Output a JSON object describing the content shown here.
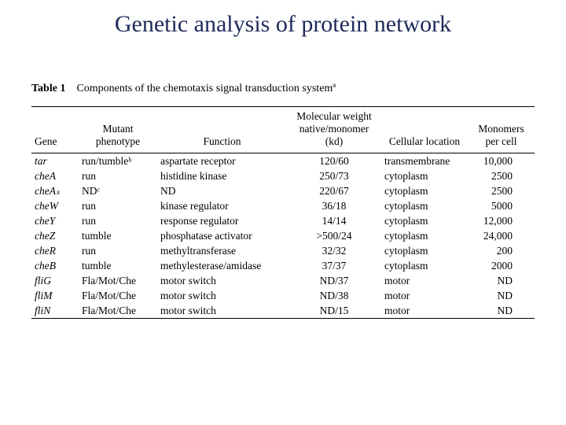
{
  "title": "Genetic analysis of protein network",
  "table": {
    "number": "Table 1",
    "caption": "Components of the chemotaxis signal transduction systemª",
    "headers": {
      "gene": "Gene",
      "phenotype": "Mutant phenotype",
      "function": "Function",
      "mw": "Molecular weight native/monomer (kd)",
      "location": "Cellular location",
      "monomers": "Monomers per cell"
    },
    "rows": [
      {
        "gene": "tar",
        "phen": "run/tumbleᵇ",
        "func": "aspartate receptor",
        "mw": "120/60",
        "loc": "transmembrane",
        "mon": "10,000"
      },
      {
        "gene": "cheA",
        "phen": "run",
        "func": "histidine kinase",
        "mw": "250/73",
        "loc": "cytoplasm",
        "mon": "2500"
      },
      {
        "gene": "cheAₛ",
        "phen": "NDᶜ",
        "func": "ND",
        "mw": "220/67",
        "loc": "cytoplasm",
        "mon": "2500"
      },
      {
        "gene": "cheW",
        "phen": "run",
        "func": "kinase regulator",
        "mw": "36/18",
        "loc": "cytoplasm",
        "mon": "5000"
      },
      {
        "gene": "cheY",
        "phen": "run",
        "func": "response regulator",
        "mw": "14/14",
        "loc": "cytoplasm",
        "mon": "12,000"
      },
      {
        "gene": "cheZ",
        "phen": "tumble",
        "func": "phosphatase activator",
        "mw": ">500/24",
        "loc": "cytoplasm",
        "mon": "24,000"
      },
      {
        "gene": "cheR",
        "phen": "run",
        "func": "methyltransferase",
        "mw": "32/32",
        "loc": "cytoplasm",
        "mon": "200"
      },
      {
        "gene": "cheB",
        "phen": "tumble",
        "func": "methylesterase/amidase",
        "mw": "37/37",
        "loc": "cytoplasm",
        "mon": "2000"
      },
      {
        "gene": "fliG",
        "phen": "Fla/Mot/Che",
        "func": "motor switch",
        "mw": "ND/37",
        "loc": "motor",
        "mon": "ND"
      },
      {
        "gene": "fliM",
        "phen": "Fla/Mot/Che",
        "func": "motor switch",
        "mw": "ND/38",
        "loc": "motor",
        "mon": "ND"
      },
      {
        "gene": "fliN",
        "phen": "Fla/Mot/Che",
        "func": "motor switch",
        "mw": "ND/15",
        "loc": "motor",
        "mon": "ND"
      }
    ]
  },
  "colors": {
    "title": "#1f2a5a",
    "text": "#000000",
    "background": "#ffffff",
    "rule": "#000000"
  }
}
